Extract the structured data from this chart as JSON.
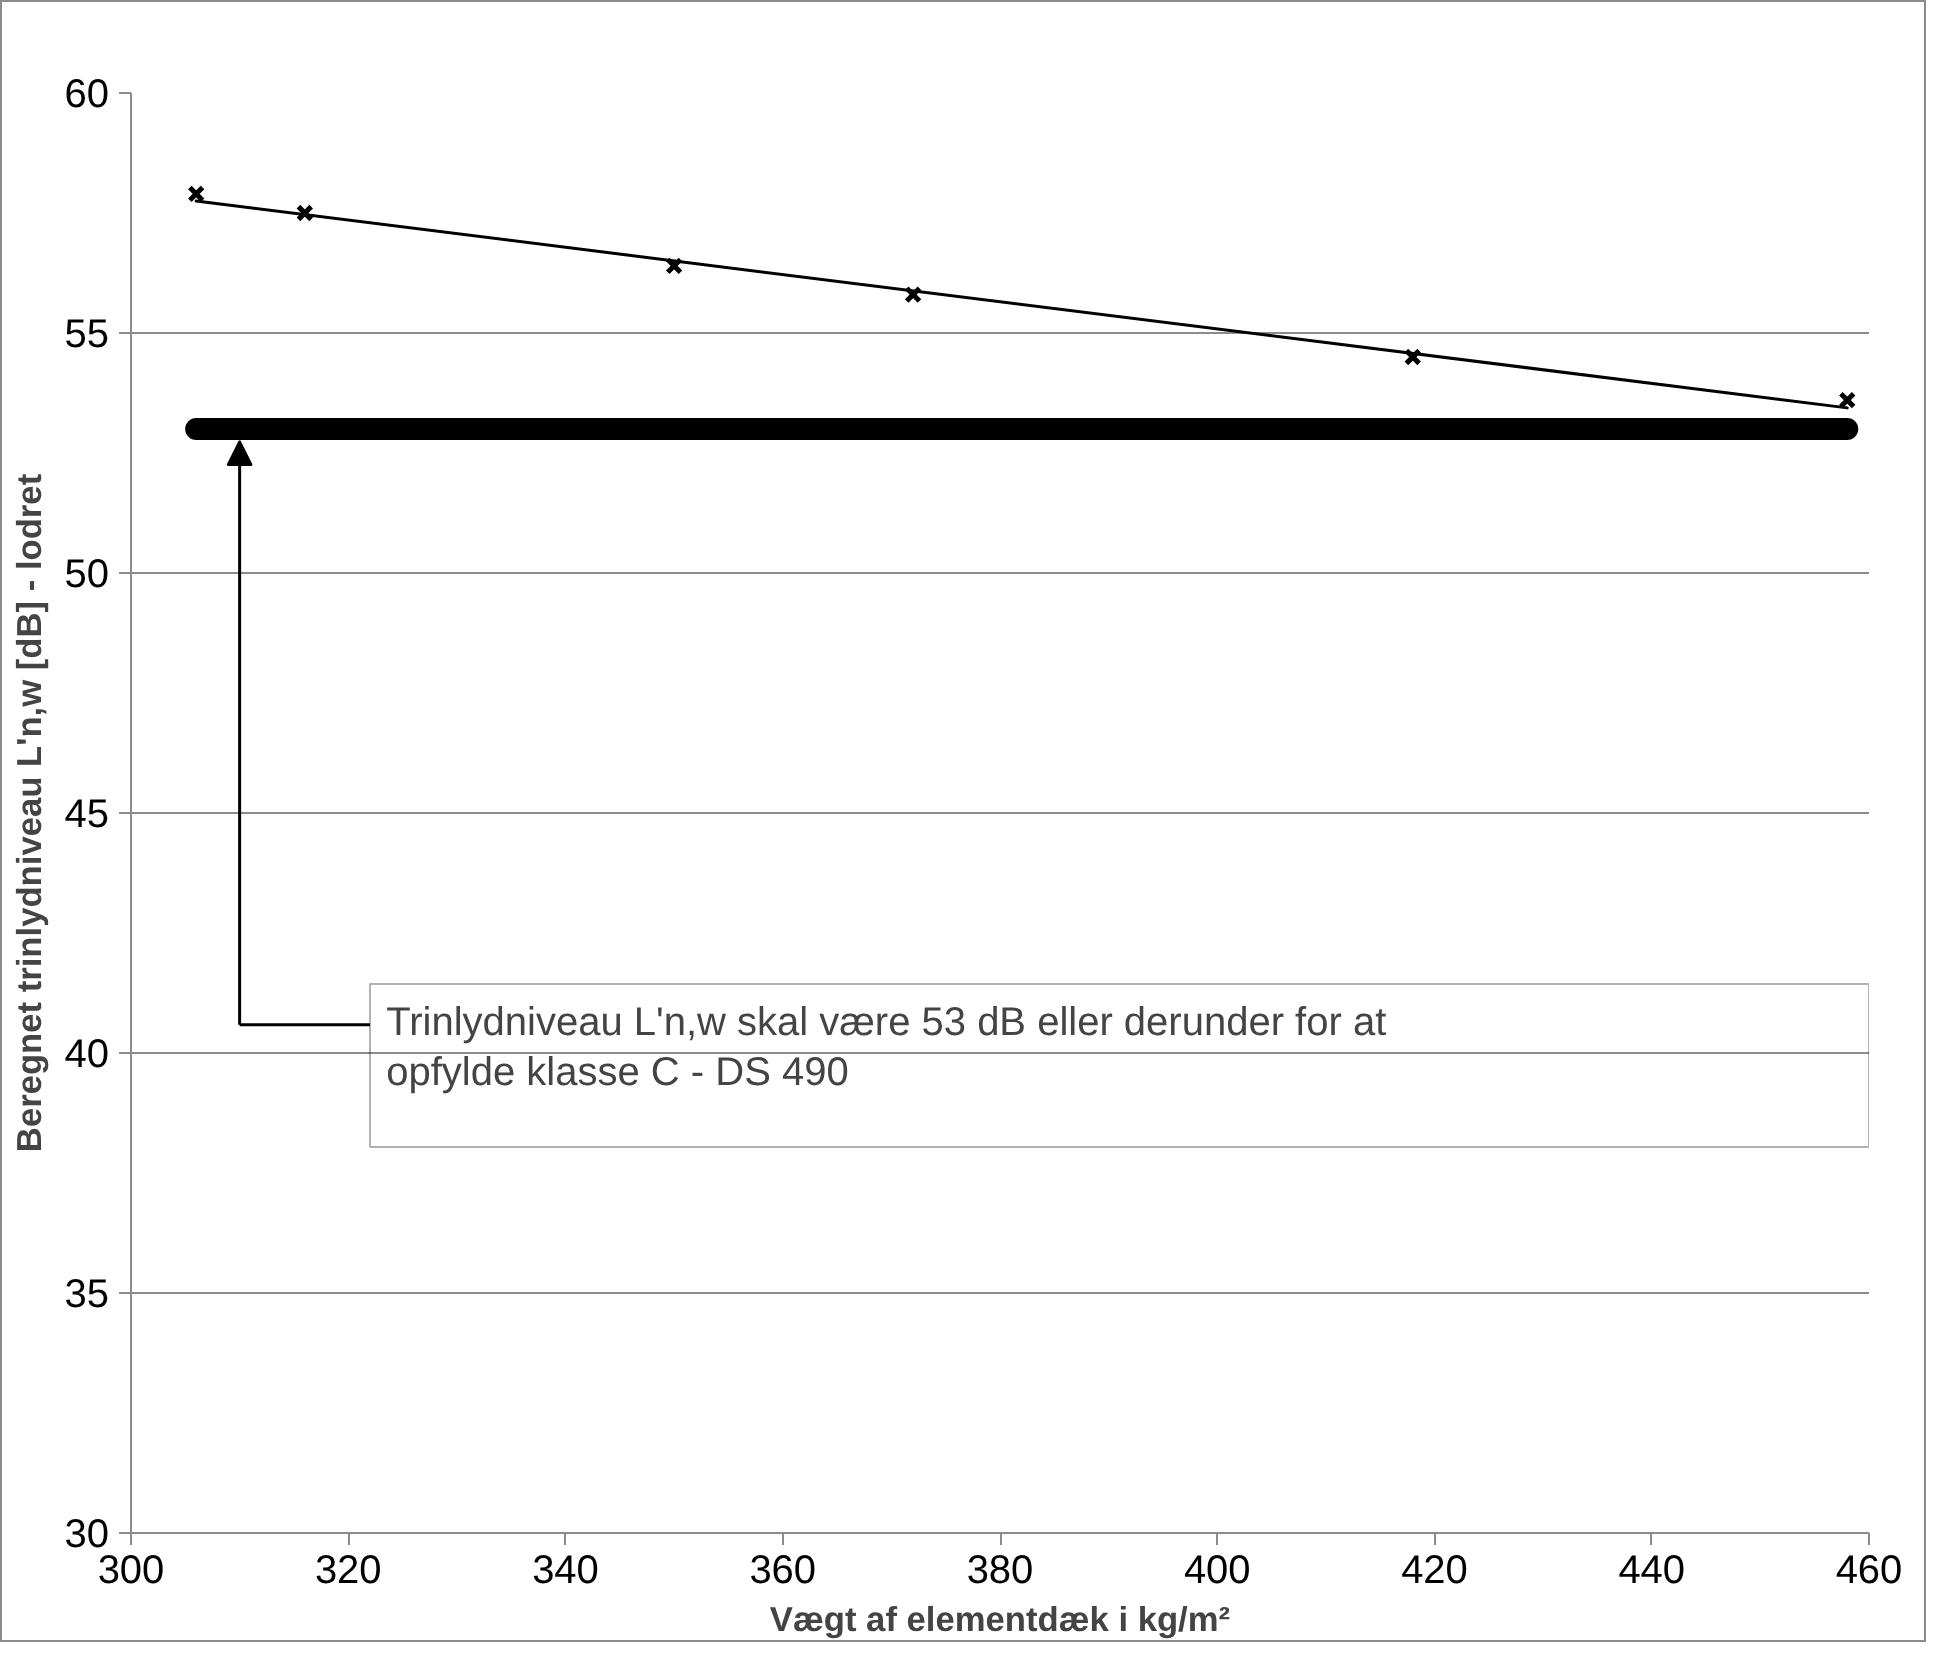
{
  "chart_data": {
    "type": "scatter",
    "xlabel": "Vægt af elementdæk i kg/m²",
    "ylabel": "Beregnet trinlydniveau L'n,w [dB] - lodret",
    "xlim": [
      300,
      460
    ],
    "xticks": [
      300,
      320,
      340,
      360,
      380,
      400,
      420,
      440,
      460
    ],
    "ylim": [
      30,
      60
    ],
    "yticks": [
      30,
      35,
      40,
      45,
      50,
      55,
      60
    ],
    "grid": "y",
    "series": [
      {
        "marker": "cross",
        "color": "#000000",
        "x": [
          306,
          316,
          350,
          372,
          418,
          458
        ],
        "values": [
          57.9,
          57.5,
          56.4,
          55.8,
          54.5,
          53.6
        ]
      },
      {
        "type": "line",
        "color": "#000000",
        "x": [
          306,
          458
        ],
        "values": [
          57.75,
          53.44
        ]
      },
      {
        "type": "line",
        "color": "#000000",
        "x": [
          306,
          458
        ],
        "values": [
          53,
          53
        ]
      }
    ],
    "annotations": [
      "Trinlydniveau L'n,w skal være 53 dB eller derunder for at opfylde klasse C - DS 490"
    ]
  }
}
